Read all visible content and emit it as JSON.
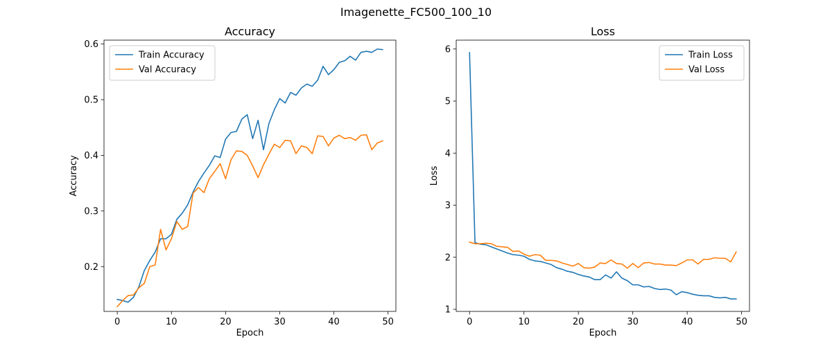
{
  "figure": {
    "suptitle": "Imagenette_FC500_100_10"
  },
  "chart_data": [
    {
      "type": "line",
      "title": "Accuracy",
      "xlabel": "Epoch",
      "ylabel": "Accuracy",
      "xlim": [
        -2.45,
        51.45
      ],
      "ylim": [
        0.1195,
        0.607
      ],
      "xticks": [
        0,
        10,
        20,
        30,
        40,
        50
      ],
      "yticks": [
        0.2,
        0.3,
        0.4,
        0.5,
        0.6
      ],
      "ytick_labels": [
        "0.2",
        "0.3",
        "0.4",
        "0.5",
        "0.6"
      ],
      "legend_position": "upper left",
      "grid": false,
      "x": [
        0,
        1,
        2,
        3,
        4,
        5,
        6,
        7,
        8,
        9,
        10,
        11,
        12,
        13,
        14,
        15,
        16,
        17,
        18,
        19,
        20,
        21,
        22,
        23,
        24,
        25,
        26,
        27,
        28,
        29,
        30,
        31,
        32,
        33,
        34,
        35,
        36,
        37,
        38,
        39,
        40,
        41,
        42,
        43,
        44,
        45,
        46,
        47,
        48,
        49
      ],
      "series": [
        {
          "name": "Train Accuracy",
          "color": "#1f77b4",
          "values": [
            0.141,
            0.139,
            0.136,
            0.145,
            0.164,
            0.193,
            0.211,
            0.226,
            0.25,
            0.25,
            0.258,
            0.285,
            0.296,
            0.311,
            0.334,
            0.353,
            0.368,
            0.382,
            0.399,
            0.396,
            0.429,
            0.441,
            0.443,
            0.465,
            0.473,
            0.43,
            0.463,
            0.41,
            0.457,
            0.482,
            0.502,
            0.494,
            0.513,
            0.508,
            0.521,
            0.528,
            0.524,
            0.535,
            0.56,
            0.545,
            0.554,
            0.567,
            0.57,
            0.578,
            0.571,
            0.585,
            0.587,
            0.585,
            0.591,
            0.59
          ]
        },
        {
          "name": "Val Accuracy",
          "color": "#ff7f0e",
          "values": [
            0.128,
            0.139,
            0.148,
            0.149,
            0.162,
            0.17,
            0.2,
            0.203,
            0.267,
            0.23,
            0.25,
            0.281,
            0.267,
            0.272,
            0.332,
            0.342,
            0.333,
            0.358,
            0.371,
            0.385,
            0.358,
            0.392,
            0.408,
            0.407,
            0.4,
            0.381,
            0.36,
            0.383,
            0.402,
            0.42,
            0.414,
            0.427,
            0.426,
            0.403,
            0.417,
            0.414,
            0.403,
            0.435,
            0.434,
            0.417,
            0.431,
            0.436,
            0.43,
            0.432,
            0.427,
            0.436,
            0.437,
            0.41,
            0.422,
            0.426
          ]
        }
      ]
    },
    {
      "type": "line",
      "title": "Loss",
      "xlabel": "Epoch",
      "ylabel": "Loss",
      "xlim": [
        -2.45,
        51.45
      ],
      "ylim": [
        0.96,
        6.17
      ],
      "xticks": [
        0,
        10,
        20,
        30,
        40,
        50
      ],
      "yticks": [
        1,
        2,
        3,
        4,
        5,
        6
      ],
      "ytick_labels": [
        "1",
        "2",
        "3",
        "4",
        "5",
        "6"
      ],
      "legend_position": "upper right",
      "grid": false,
      "x": [
        0,
        1,
        2,
        3,
        4,
        5,
        6,
        7,
        8,
        9,
        10,
        11,
        12,
        13,
        14,
        15,
        16,
        17,
        18,
        19,
        20,
        21,
        22,
        23,
        24,
        25,
        26,
        27,
        28,
        29,
        30,
        31,
        32,
        33,
        34,
        35,
        36,
        37,
        38,
        39,
        40,
        41,
        42,
        43,
        44,
        45,
        46,
        47,
        48,
        49
      ],
      "series": [
        {
          "name": "Train Loss",
          "color": "#1f77b4",
          "values": [
            5.93,
            2.28,
            2.25,
            2.24,
            2.2,
            2.16,
            2.12,
            2.08,
            2.05,
            2.04,
            2.02,
            1.96,
            1.93,
            1.92,
            1.89,
            1.86,
            1.8,
            1.77,
            1.73,
            1.71,
            1.67,
            1.64,
            1.62,
            1.57,
            1.57,
            1.66,
            1.6,
            1.72,
            1.6,
            1.55,
            1.47,
            1.47,
            1.43,
            1.44,
            1.4,
            1.38,
            1.39,
            1.37,
            1.28,
            1.34,
            1.32,
            1.29,
            1.27,
            1.26,
            1.26,
            1.23,
            1.22,
            1.23,
            1.2,
            1.2
          ]
        },
        {
          "name": "Val Loss",
          "color": "#ff7f0e",
          "values": [
            2.29,
            2.26,
            2.26,
            2.27,
            2.26,
            2.21,
            2.2,
            2.19,
            2.11,
            2.12,
            2.06,
            2.02,
            2.05,
            2.04,
            1.94,
            1.94,
            1.93,
            1.89,
            1.86,
            1.83,
            1.88,
            1.8,
            1.79,
            1.81,
            1.89,
            1.88,
            1.95,
            1.88,
            1.87,
            1.79,
            1.88,
            1.8,
            1.89,
            1.9,
            1.87,
            1.87,
            1.85,
            1.85,
            1.84,
            1.89,
            1.95,
            1.95,
            1.87,
            1.96,
            1.96,
            1.99,
            1.98,
            1.98,
            1.91,
            2.1
          ]
        }
      ]
    }
  ]
}
